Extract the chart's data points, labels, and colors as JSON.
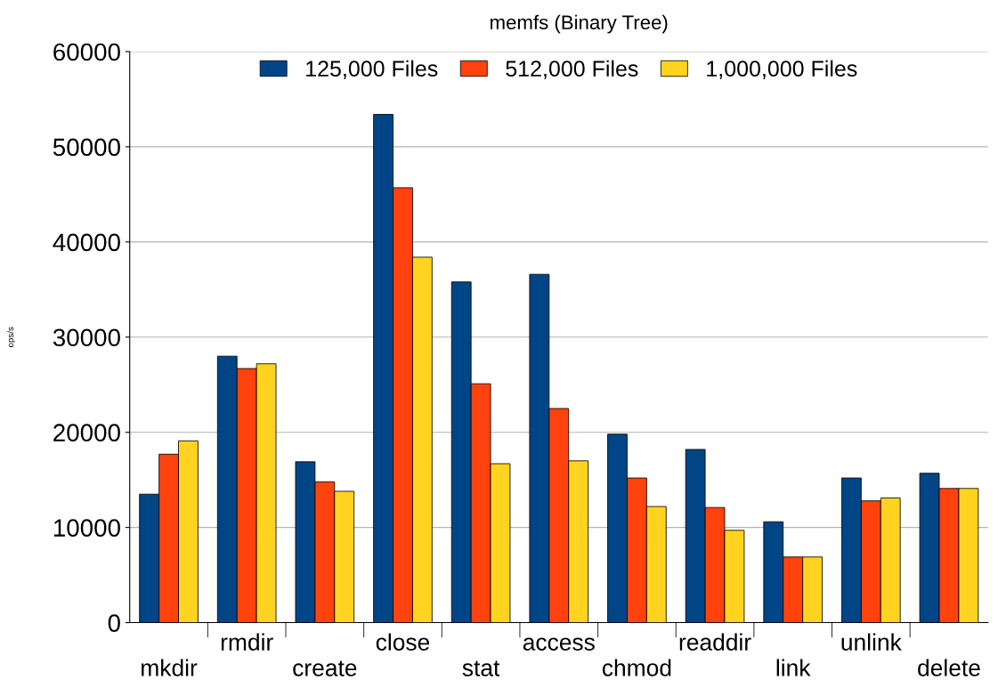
{
  "chart_data": {
    "type": "bar",
    "title": "memfs (Binary Tree)",
    "ylabel": "ops/s",
    "categories": [
      "mkdir",
      "rmdir",
      "create",
      "close",
      "stat",
      "access",
      "chmod",
      "readdir",
      "link",
      "unlink",
      "delete"
    ],
    "series": [
      {
        "name": "125,000 Files",
        "color": "#004586",
        "values": [
          13500,
          28000,
          16900,
          53400,
          35800,
          36600,
          19800,
          18200,
          10600,
          15200,
          15700
        ]
      },
      {
        "name": "512,000 Files",
        "color": "#ff420e",
        "values": [
          17700,
          26700,
          14800,
          45700,
          25100,
          22500,
          15200,
          12100,
          6900,
          12800,
          14100
        ]
      },
      {
        "name": "1,000,000 Files",
        "color": "#ffd320",
        "values": [
          19100,
          27200,
          13800,
          38400,
          16700,
          17000,
          12200,
          9700,
          6900,
          13100,
          14100
        ]
      }
    ],
    "ylim": [
      0,
      60000
    ],
    "yticks": [
      0,
      10000,
      20000,
      30000,
      40000,
      50000,
      60000
    ],
    "grid": "y",
    "legend": "top"
  }
}
